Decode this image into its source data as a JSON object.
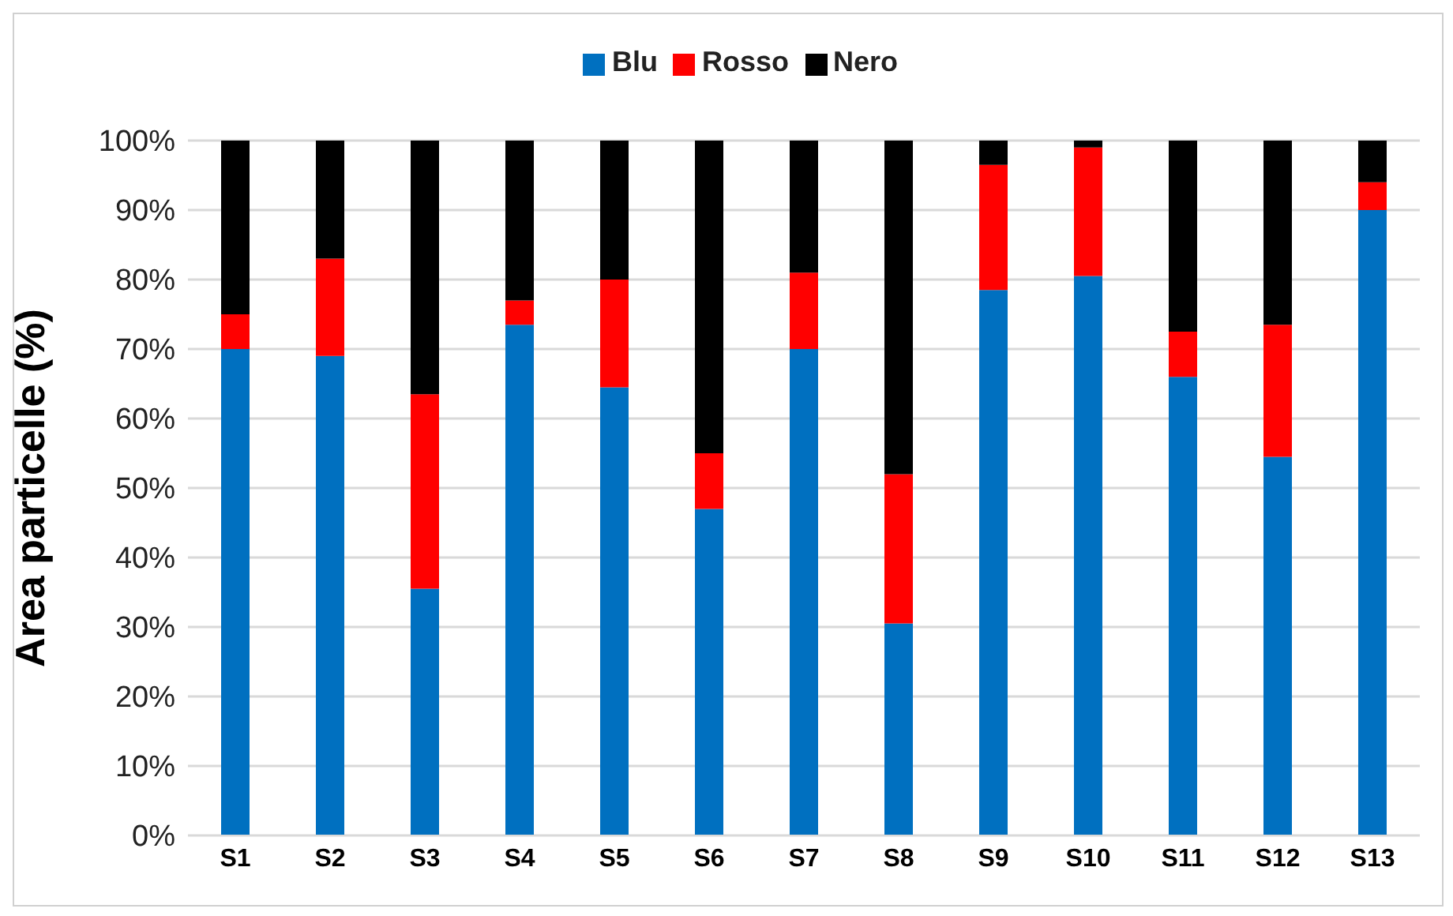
{
  "chart_data": {
    "type": "bar",
    "stacked": true,
    "ylabel": "Area particelle (%)",
    "categories": [
      "S1",
      "S2",
      "S3",
      "S4",
      "S5",
      "S6",
      "S7",
      "S8",
      "S9",
      "S10",
      "S11",
      "S12",
      "S13"
    ],
    "series": [
      {
        "name": "Blu",
        "color": "#0070c0",
        "values": [
          70,
          69,
          35.5,
          73.5,
          64.5,
          47,
          70,
          30.5,
          78.5,
          80.5,
          66,
          54.5,
          90
        ]
      },
      {
        "name": "Rosso",
        "color": "#ff0000",
        "values": [
          5,
          14,
          28,
          3.5,
          15.5,
          8,
          11,
          21.5,
          18,
          18.5,
          6.5,
          19,
          4
        ]
      },
      {
        "name": "Nero",
        "color": "#000000",
        "values": [
          25,
          17,
          36.5,
          23,
          20,
          45,
          19,
          48,
          3.5,
          1,
          27.5,
          26.5,
          6
        ]
      }
    ],
    "ylim": [
      0,
      100
    ],
    "yticks": [
      {
        "value": 0,
        "label": "0%"
      },
      {
        "value": 10,
        "label": "10%"
      },
      {
        "value": 20,
        "label": "20%"
      },
      {
        "value": 30,
        "label": "30%"
      },
      {
        "value": 40,
        "label": "40%"
      },
      {
        "value": 50,
        "label": "50%"
      },
      {
        "value": 60,
        "label": "60%"
      },
      {
        "value": 70,
        "label": "70%"
      },
      {
        "value": 80,
        "label": "80%"
      },
      {
        "value": 90,
        "label": "90%"
      },
      {
        "value": 100,
        "label": "100%"
      }
    ],
    "grid": "y",
    "legend": "top"
  }
}
